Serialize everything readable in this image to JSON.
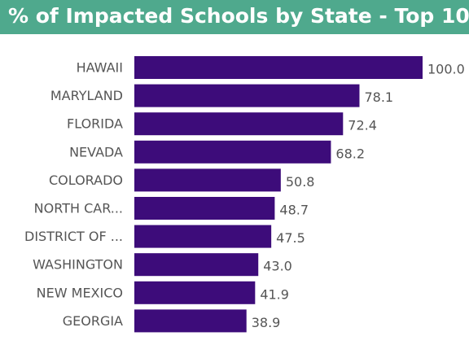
{
  "title": "% of Impacted Schools by State - Top 10",
  "colors": {
    "header_bg": "#4fa98d",
    "bar": "#3d0c7a",
    "text": "#555555"
  },
  "chart_data": {
    "type": "bar",
    "orientation": "horizontal",
    "title": "% of Impacted Schools by State - Top 10",
    "categories": [
      "HAWAII",
      "MARYLAND",
      "FLORIDA",
      "NEVADA",
      "COLORADO",
      "NORTH CAR...",
      "DISTRICT OF ...",
      "WASHINGTON",
      "NEW MEXICO",
      "GEORGIA"
    ],
    "values": [
      100.0,
      78.1,
      72.4,
      68.2,
      50.8,
      48.7,
      47.5,
      43.0,
      41.9,
      38.9
    ],
    "value_labels": [
      "100.0",
      "78.1",
      "72.4",
      "68.2",
      "50.8",
      "48.7",
      "47.5",
      "43.0",
      "41.9",
      "38.9"
    ],
    "xlim": [
      0,
      100
    ],
    "grid": false,
    "legend": "none",
    "xlabel": "",
    "ylabel": ""
  }
}
